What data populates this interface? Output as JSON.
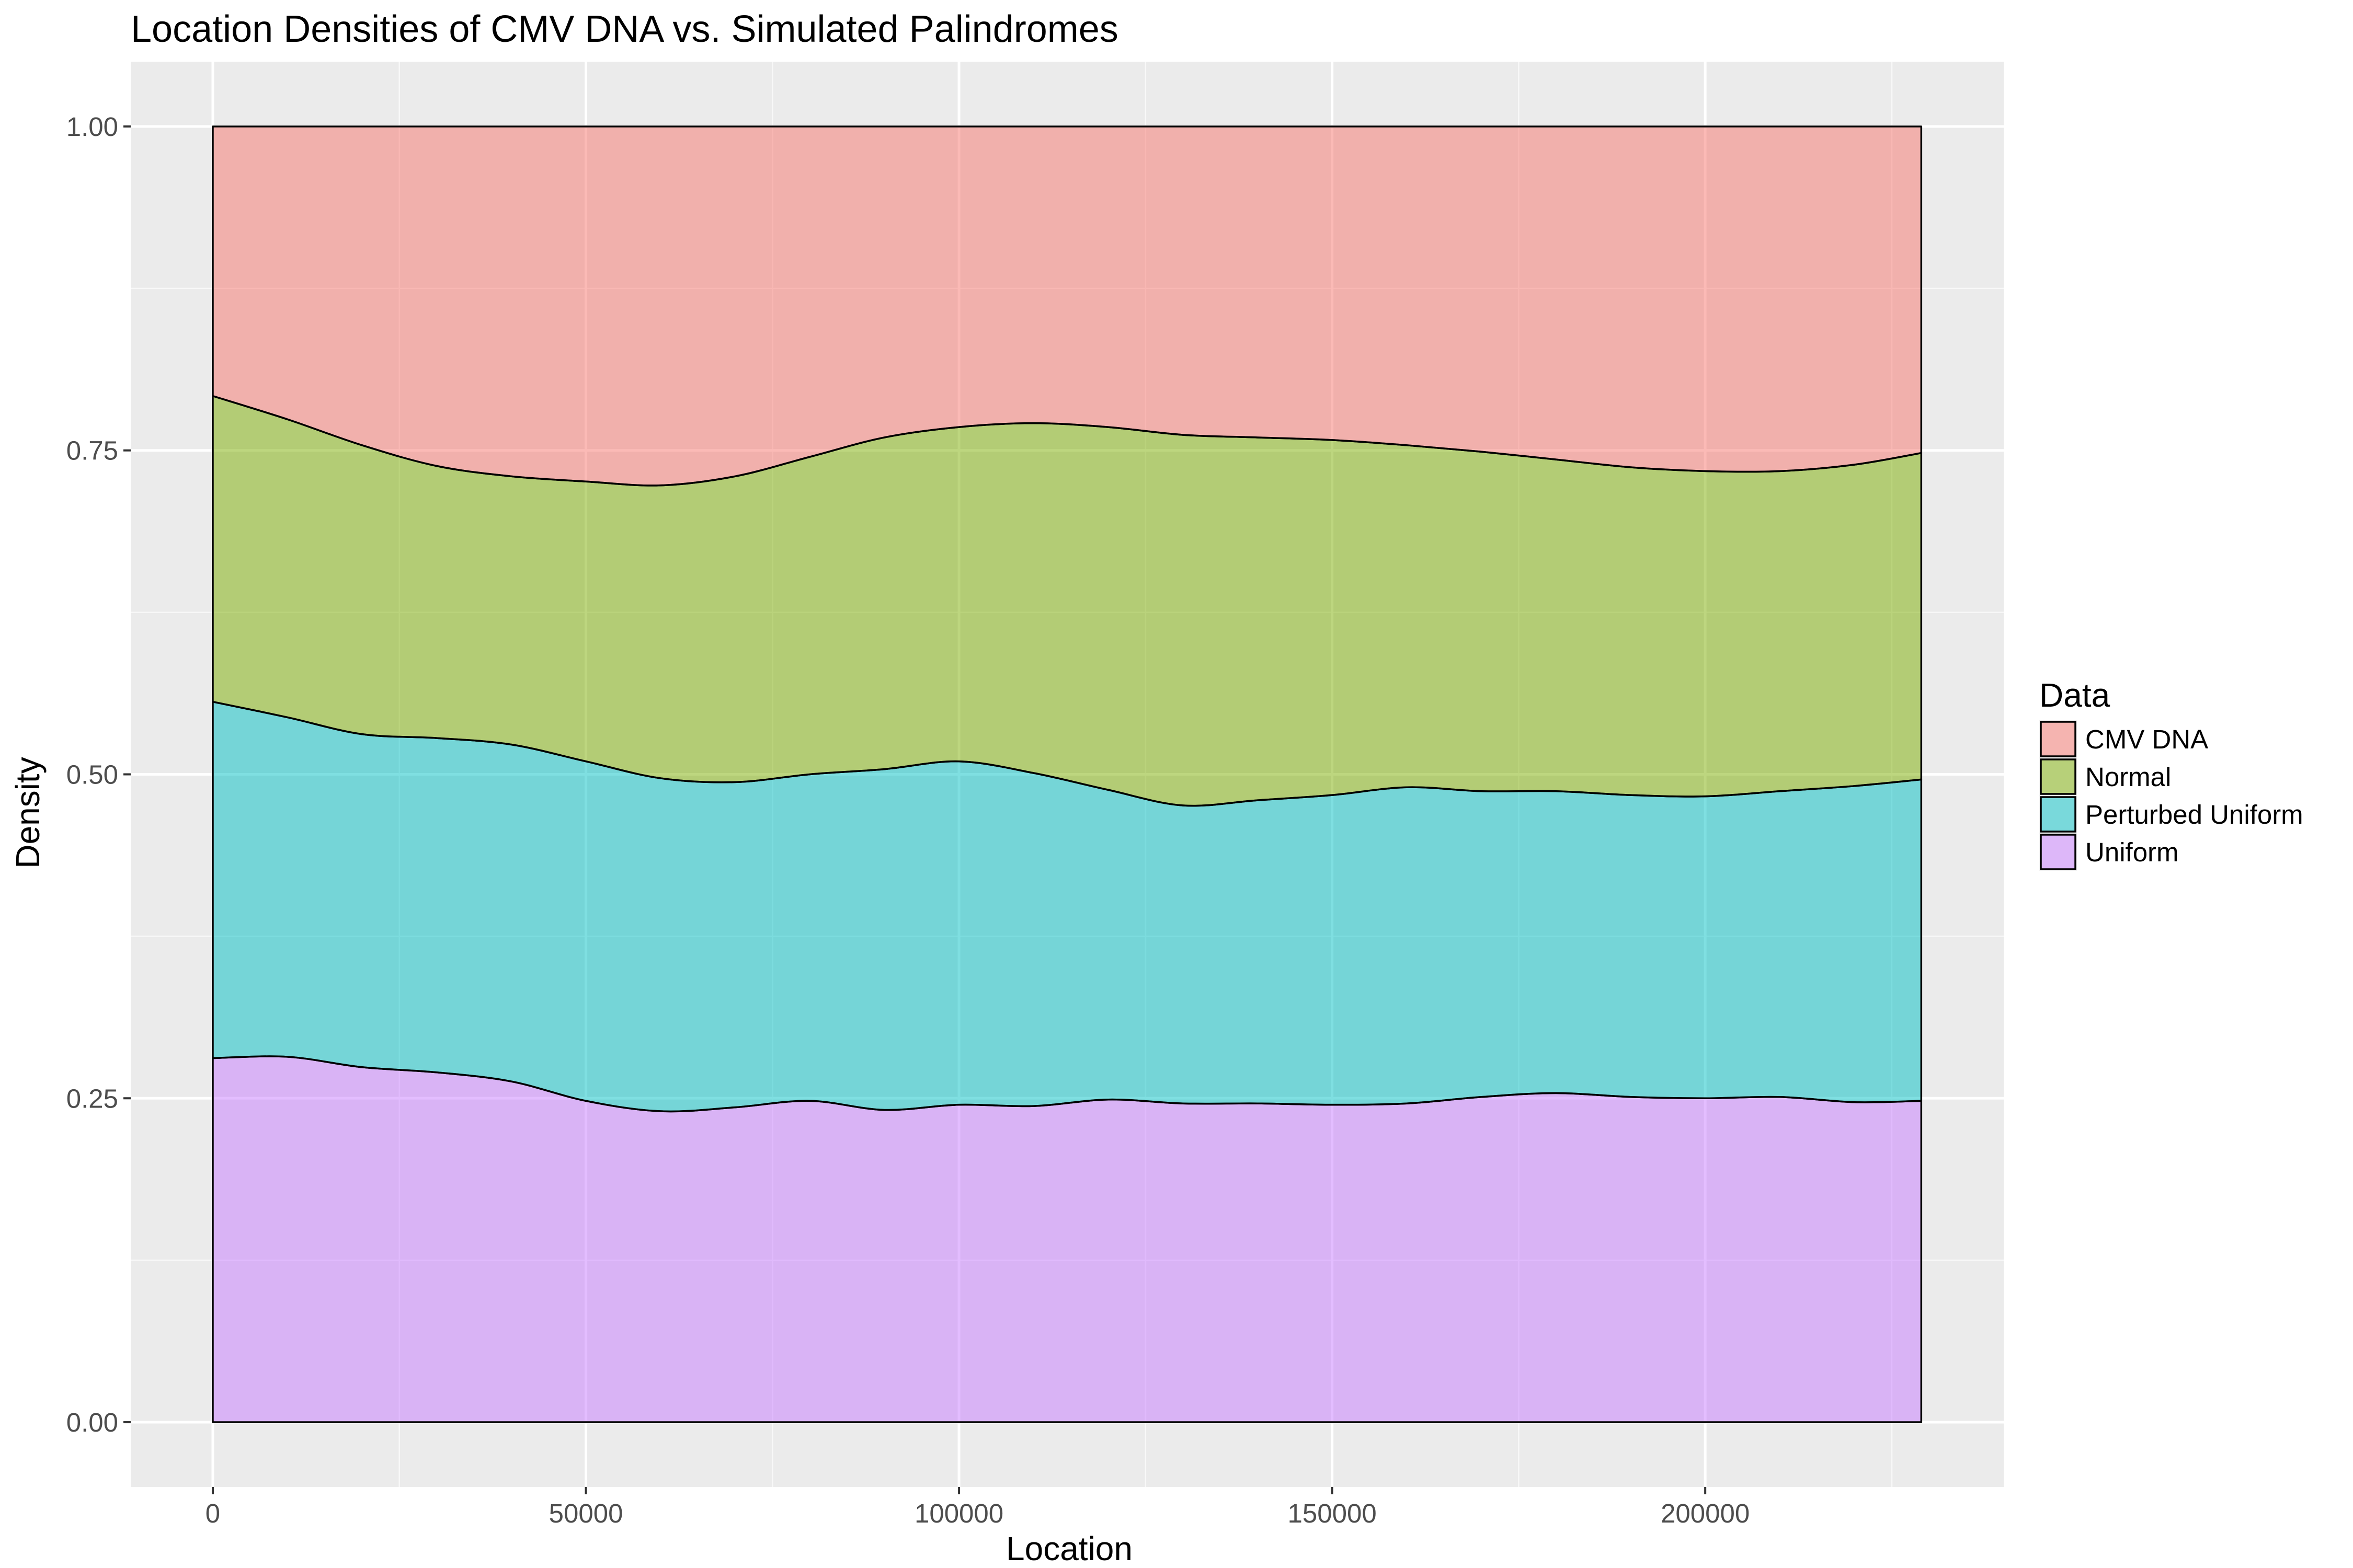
{
  "chart_data": {
    "type": "area",
    "stacking": "fill",
    "title": "Location Densities of CMV DNA vs. Simulated Palindromes",
    "xlabel": "Location",
    "ylabel": "Density",
    "xlim": [
      -11000,
      240000
    ],
    "ylim": [
      -0.05,
      1.05
    ],
    "x_ticks": [
      0,
      50000,
      100000,
      150000,
      200000
    ],
    "x_tick_labels": [
      "0",
      "50000",
      "100000",
      "150000",
      "200000"
    ],
    "y_ticks": [
      0.0,
      0.25,
      0.5,
      0.75,
      1.0
    ],
    "y_tick_labels": [
      "0.00",
      "0.25",
      "0.50",
      "0.75",
      "1.00"
    ],
    "grid": true,
    "legend_position": "right",
    "legend_title": "Data",
    "x": [
      0,
      10000,
      20000,
      30000,
      40000,
      50000,
      60000,
      70000,
      80000,
      90000,
      100000,
      110000,
      120000,
      130000,
      140000,
      150000,
      160000,
      170000,
      180000,
      190000,
      200000,
      210000,
      220000,
      228953
    ],
    "series": [
      {
        "name": "CMV DNA",
        "color": "#F8766D",
        "values": [
          0.208,
          0.226,
          0.246,
          0.262,
          0.27,
          0.274,
          0.277,
          0.27,
          0.255,
          0.24,
          0.232,
          0.229,
          0.232,
          0.238,
          0.24,
          0.242,
          0.246,
          0.251,
          0.257,
          0.263,
          0.266,
          0.266,
          0.261,
          0.252
        ]
      },
      {
        "name": "Normal",
        "color": "#7CAE00",
        "values": [
          0.236,
          0.23,
          0.223,
          0.21,
          0.207,
          0.216,
          0.226,
          0.236,
          0.245,
          0.256,
          0.258,
          0.27,
          0.28,
          0.286,
          0.28,
          0.274,
          0.264,
          0.262,
          0.256,
          0.253,
          0.251,
          0.247,
          0.248,
          0.252
        ]
      },
      {
        "name": "Perturbed Uniform",
        "color": "#00BFC4",
        "values": [
          0.275,
          0.262,
          0.257,
          0.258,
          0.26,
          0.262,
          0.257,
          0.251,
          0.252,
          0.263,
          0.265,
          0.257,
          0.239,
          0.23,
          0.234,
          0.239,
          0.244,
          0.236,
          0.233,
          0.233,
          0.233,
          0.236,
          0.244,
          0.248
        ]
      },
      {
        "name": "Uniform",
        "color": "#C77CFF",
        "values": [
          0.281,
          0.282,
          0.274,
          0.27,
          0.263,
          0.248,
          0.24,
          0.243,
          0.248,
          0.241,
          0.245,
          0.244,
          0.249,
          0.246,
          0.246,
          0.245,
          0.246,
          0.251,
          0.254,
          0.251,
          0.25,
          0.251,
          0.247,
          0.248
        ]
      }
    ]
  }
}
